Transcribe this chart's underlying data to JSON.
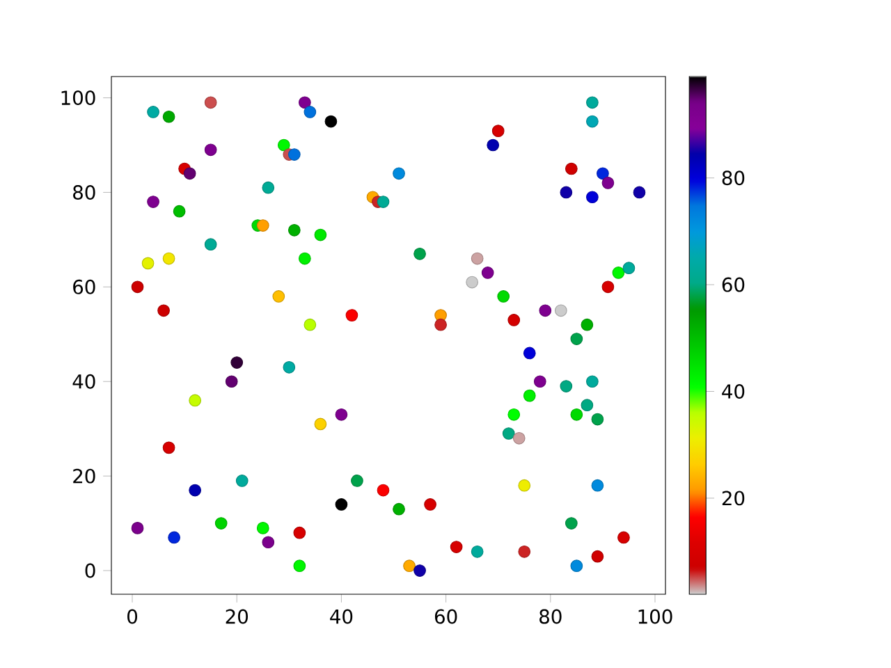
{
  "chart_data": {
    "type": "scatter",
    "marker": "circle",
    "x": [
      4,
      7,
      15,
      33,
      34,
      38,
      29,
      30,
      31,
      15,
      10,
      11,
      4,
      9,
      26,
      24,
      25,
      31,
      36,
      15,
      3,
      7,
      33,
      1,
      6,
      28,
      34,
      42,
      46,
      47,
      48,
      51,
      70,
      69,
      88,
      88,
      84,
      90,
      91,
      83,
      88,
      97,
      55,
      66,
      68,
      65,
      71,
      59,
      59,
      73,
      79,
      82,
      87,
      85,
      91,
      93,
      95,
      1,
      8,
      7,
      12,
      12,
      17,
      20,
      19,
      21,
      25,
      26,
      30,
      32,
      32,
      36,
      40,
      40,
      43,
      48,
      51,
      57,
      62,
      66,
      53,
      55,
      75,
      75,
      76,
      78,
      76,
      73,
      72,
      74,
      83,
      85,
      87,
      88,
      89,
      84,
      89,
      85,
      89,
      94
    ],
    "values": [
      97,
      96,
      99,
      99,
      97,
      95,
      90,
      88,
      88,
      89,
      85,
      84,
      78,
      76,
      81,
      73,
      73,
      72,
      71,
      69,
      65,
      66,
      66,
      60,
      55,
      58,
      52,
      54,
      79,
      78,
      78,
      84,
      93,
      90,
      99,
      95,
      85,
      84,
      82,
      80,
      79,
      80,
      67,
      66,
      63,
      61,
      58,
      54,
      52,
      53,
      55,
      55,
      52,
      49,
      60,
      63,
      64,
      9,
      7,
      26,
      17,
      36,
      10,
      44,
      40,
      19,
      9,
      6,
      43,
      8,
      1,
      31,
      33,
      14,
      19,
      17,
      13,
      14,
      5,
      4,
      1,
      0,
      4,
      18,
      46,
      40,
      37,
      33,
      29,
      28,
      39,
      33,
      35,
      40,
      32,
      10,
      18,
      1,
      3,
      7
    ],
    "cvalues": [
      64,
      53,
      5,
      92,
      75,
      99,
      42,
      5,
      75,
      92,
      10,
      95,
      92,
      50,
      62,
      46,
      22,
      52,
      44,
      62,
      32,
      30,
      43,
      7,
      7,
      25,
      36,
      16,
      23,
      6,
      62,
      72,
      10,
      84,
      63,
      66,
      8,
      78,
      92,
      85,
      80,
      85,
      58,
      3,
      92,
      2,
      46,
      22,
      6,
      9,
      92,
      2,
      52,
      58,
      10,
      42,
      63,
      93,
      78,
      10,
      84,
      35,
      47,
      97,
      95,
      63,
      42,
      93,
      64,
      10,
      42,
      27,
      92,
      99,
      58,
      16,
      52,
      10,
      10,
      63,
      23,
      85,
      6,
      31,
      80,
      92,
      43,
      41,
      60,
      3,
      60,
      46,
      60,
      63,
      58,
      58,
      72,
      72,
      8,
      10
    ],
    "clim": [
      2,
      99
    ],
    "cticks": [
      20,
      40,
      60,
      80
    ],
    "xlim": [
      -4,
      102
    ],
    "ylim": [
      -5,
      104.5
    ],
    "xticks": [
      0,
      20,
      40,
      60,
      80,
      100
    ],
    "yticks": [
      0,
      20,
      40,
      60,
      80,
      100
    ]
  }
}
